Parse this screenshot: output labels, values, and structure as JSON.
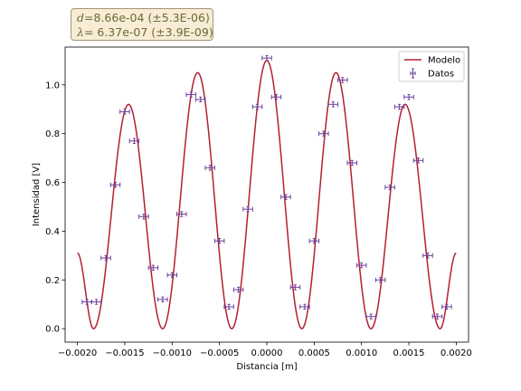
{
  "fit_box": {
    "d_symbol": "d",
    "d_text": "=8.66e-04 (±5.3E-06)",
    "lambda_symbol": "λ",
    "lambda_text": "=  6.37e-07 (±3.9E-09)"
  },
  "colors": {
    "model": "#b22030",
    "data": "#6a3d9a",
    "box_bg": "#f8ecd6",
    "box_border": "#a69676",
    "box_text": "#6a6a36"
  },
  "chart_data": {
    "type": "line",
    "xlabel": "Distancia [m]",
    "ylabel": "Intensidad [V]",
    "xlim": [
      -0.00213,
      0.00213
    ],
    "ylim": [
      -0.055,
      1.155
    ],
    "x_ticks": [
      -0.002,
      -0.0015,
      -0.001,
      -0.0005,
      0.0,
      0.0005,
      0.001,
      0.0015,
      0.002
    ],
    "x_tick_labels": [
      "−0.0020",
      "−0.0015",
      "−0.0010",
      "−0.0005",
      "0.0000",
      "0.0005",
      "0.0010",
      "0.0015",
      "0.0020"
    ],
    "y_ticks": [
      0.0,
      0.2,
      0.4,
      0.6,
      0.8,
      1.0
    ],
    "y_tick_labels": [
      "0.0",
      "0.2",
      "0.4",
      "0.6",
      "0.8",
      "1.0"
    ],
    "grid": false,
    "legend_position": "top-right",
    "legend": [
      "Modelo",
      "Datos"
    ],
    "model": {
      "name": "Modelo",
      "x_range": [
        -0.002,
        0.002
      ],
      "peaks": [
        {
          "x": -0.00146,
          "y": 0.92
        },
        {
          "x": -0.00073,
          "y": 1.05
        },
        {
          "x": 0.0,
          "y": 1.1
        },
        {
          "x": 0.00073,
          "y": 1.05
        },
        {
          "x": 0.00146,
          "y": 0.92
        }
      ],
      "minima": [
        {
          "x": -0.00183,
          "y": 0.0
        },
        {
          "x": -0.0011,
          "y": 0.0
        },
        {
          "x": -0.00037,
          "y": 0.0
        },
        {
          "x": 0.00037,
          "y": 0.0
        },
        {
          "x": 0.0011,
          "y": 0.0
        },
        {
          "x": 0.00183,
          "y": 0.0
        }
      ],
      "endpoints": {
        "left": 0.31,
        "right": 0.31
      }
    },
    "series": [
      {
        "name": "Datos",
        "x_err": 5e-05,
        "y_err": 0.01,
        "points": [
          [
            -0.0019,
            0.11
          ],
          [
            -0.0018,
            0.11
          ],
          [
            -0.0017,
            0.29
          ],
          [
            -0.0016,
            0.59
          ],
          [
            -0.0015,
            0.89
          ],
          [
            -0.0014,
            0.77
          ],
          [
            -0.0013,
            0.46
          ],
          [
            -0.0012,
            0.25
          ],
          [
            -0.0011,
            0.12
          ],
          [
            -0.001,
            0.22
          ],
          [
            -0.0009,
            0.47
          ],
          [
            -0.0008,
            0.96
          ],
          [
            -0.0007,
            0.94
          ],
          [
            -0.0006,
            0.66
          ],
          [
            -0.0005,
            0.36
          ],
          [
            -0.0004,
            0.09
          ],
          [
            -0.0003,
            0.16
          ],
          [
            -0.0002,
            0.49
          ],
          [
            -0.0001,
            0.91
          ],
          [
            0.0,
            1.11
          ],
          [
            0.0001,
            0.95
          ],
          [
            0.0002,
            0.54
          ],
          [
            0.0003,
            0.17
          ],
          [
            0.0004,
            0.09
          ],
          [
            0.0005,
            0.36
          ],
          [
            0.0006,
            0.8
          ],
          [
            0.0007,
            0.92
          ],
          [
            0.0008,
            1.02
          ],
          [
            0.0009,
            0.68
          ],
          [
            0.001,
            0.26
          ],
          [
            0.0011,
            0.05
          ],
          [
            0.0012,
            0.2
          ],
          [
            0.0013,
            0.58
          ],
          [
            0.0014,
            0.91
          ],
          [
            0.0015,
            0.95
          ],
          [
            0.0016,
            0.69
          ],
          [
            0.0017,
            0.3
          ],
          [
            0.0018,
            0.05
          ],
          [
            0.0019,
            0.09
          ]
        ]
      }
    ]
  }
}
